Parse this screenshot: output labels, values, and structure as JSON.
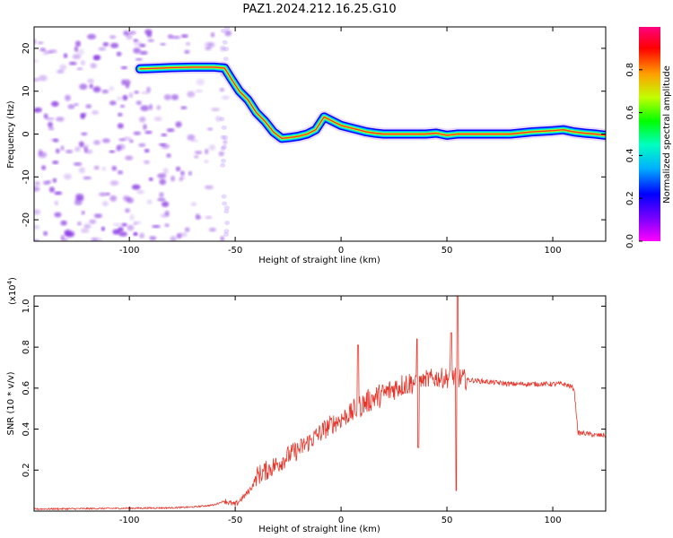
{
  "title": "PAZ1.2024.212.16.25.G10",
  "colors": {
    "snr_line": "#e8352a",
    "scatter_purple": "#7a1fe0",
    "colormap": [
      "#ff00ff",
      "#8000ff",
      "#0000ff",
      "#00b0ff",
      "#00ffc0",
      "#00ff00",
      "#c0ff00",
      "#ffa000",
      "#ff0000",
      "#ff0080"
    ]
  },
  "chart_data": [
    {
      "type": "heatmap",
      "xlabel": "Height of straight line (km)",
      "ylabel": "Frequency (Hz)",
      "xlim": [
        -145,
        125
      ],
      "ylim": [
        -25,
        25
      ],
      "xticks": [
        -100,
        -50,
        0,
        50,
        100
      ],
      "yticks": [
        -20,
        -10,
        0,
        10,
        20
      ],
      "ridge": {
        "x": [
          -95,
          -90,
          -80,
          -70,
          -60,
          -55,
          -52,
          -48,
          -44,
          -40,
          -36,
          -32,
          -28,
          -24,
          -20,
          -16,
          -12,
          -8,
          -4,
          0,
          4,
          8,
          12,
          16,
          20,
          30,
          40,
          45,
          50,
          55,
          60,
          70,
          80,
          90,
          100,
          105,
          110,
          115,
          120,
          125
        ],
        "y": [
          15.2,
          15.3,
          15.5,
          15.6,
          15.6,
          15.4,
          13,
          10,
          8,
          5,
          3,
          0.5,
          -1,
          -0.8,
          -0.5,
          0,
          1,
          4,
          3,
          2,
          1.5,
          1,
          0.5,
          0.2,
          0,
          0,
          0,
          0.2,
          -0.3,
          0,
          0,
          0,
          0,
          0.5,
          0.8,
          1,
          0.5,
          0.2,
          0,
          -0.3
        ]
      },
      "colorbar": {
        "label": "Normalized spectral amplitude",
        "range": [
          0,
          1
        ],
        "ticks": [
          "0.0",
          "0.2",
          "0.4",
          "0.6",
          "0.8"
        ]
      }
    },
    {
      "type": "line",
      "xlabel": "Height of straight line (km)",
      "ylabel": "SNR (10 * v/v)",
      "scale_label": "(x10",
      "scale_exp": "4",
      "xlim": [
        -145,
        125
      ],
      "ylim": [
        0,
        1.05
      ],
      "xticks": [
        -100,
        -50,
        0,
        50,
        100
      ],
      "yticks": [
        "0.2",
        "0.4",
        "0.6",
        "0.8",
        "1.0"
      ],
      "series": [
        {
          "x": [
            -145,
            -120,
            -100,
            -80,
            -70,
            -60,
            -55,
            -50,
            -48,
            -45,
            -42,
            -40,
            -35,
            -30,
            -25,
            -20,
            -15,
            -10,
            -5,
            0,
            5,
            10,
            15,
            20,
            25,
            30,
            35,
            40,
            45,
            50,
            55,
            60,
            70,
            80,
            90,
            100,
            105,
            108,
            110,
            112,
            115,
            120,
            125
          ],
          "y": [
            0.01,
            0.012,
            0.014,
            0.016,
            0.02,
            0.03,
            0.05,
            0.03,
            0.05,
            0.08,
            0.12,
            0.17,
            0.2,
            0.23,
            0.27,
            0.3,
            0.34,
            0.38,
            0.42,
            0.45,
            0.48,
            0.52,
            0.55,
            0.57,
            0.6,
            0.62,
            0.63,
            0.64,
            0.65,
            0.65,
            0.65,
            0.64,
            0.63,
            0.62,
            0.62,
            0.62,
            0.62,
            0.61,
            0.6,
            0.38,
            0.38,
            0.37,
            0.37
          ]
        }
      ],
      "spikes": [
        {
          "x": 8,
          "y": 0.81
        },
        {
          "x": 36,
          "y": 0.84
        },
        {
          "x": 36.5,
          "y": 0.31
        },
        {
          "x": 52,
          "y": 0.87
        },
        {
          "x": 54.5,
          "y": 0.1
        },
        {
          "x": 55,
          "y": 1.05
        }
      ]
    }
  ]
}
